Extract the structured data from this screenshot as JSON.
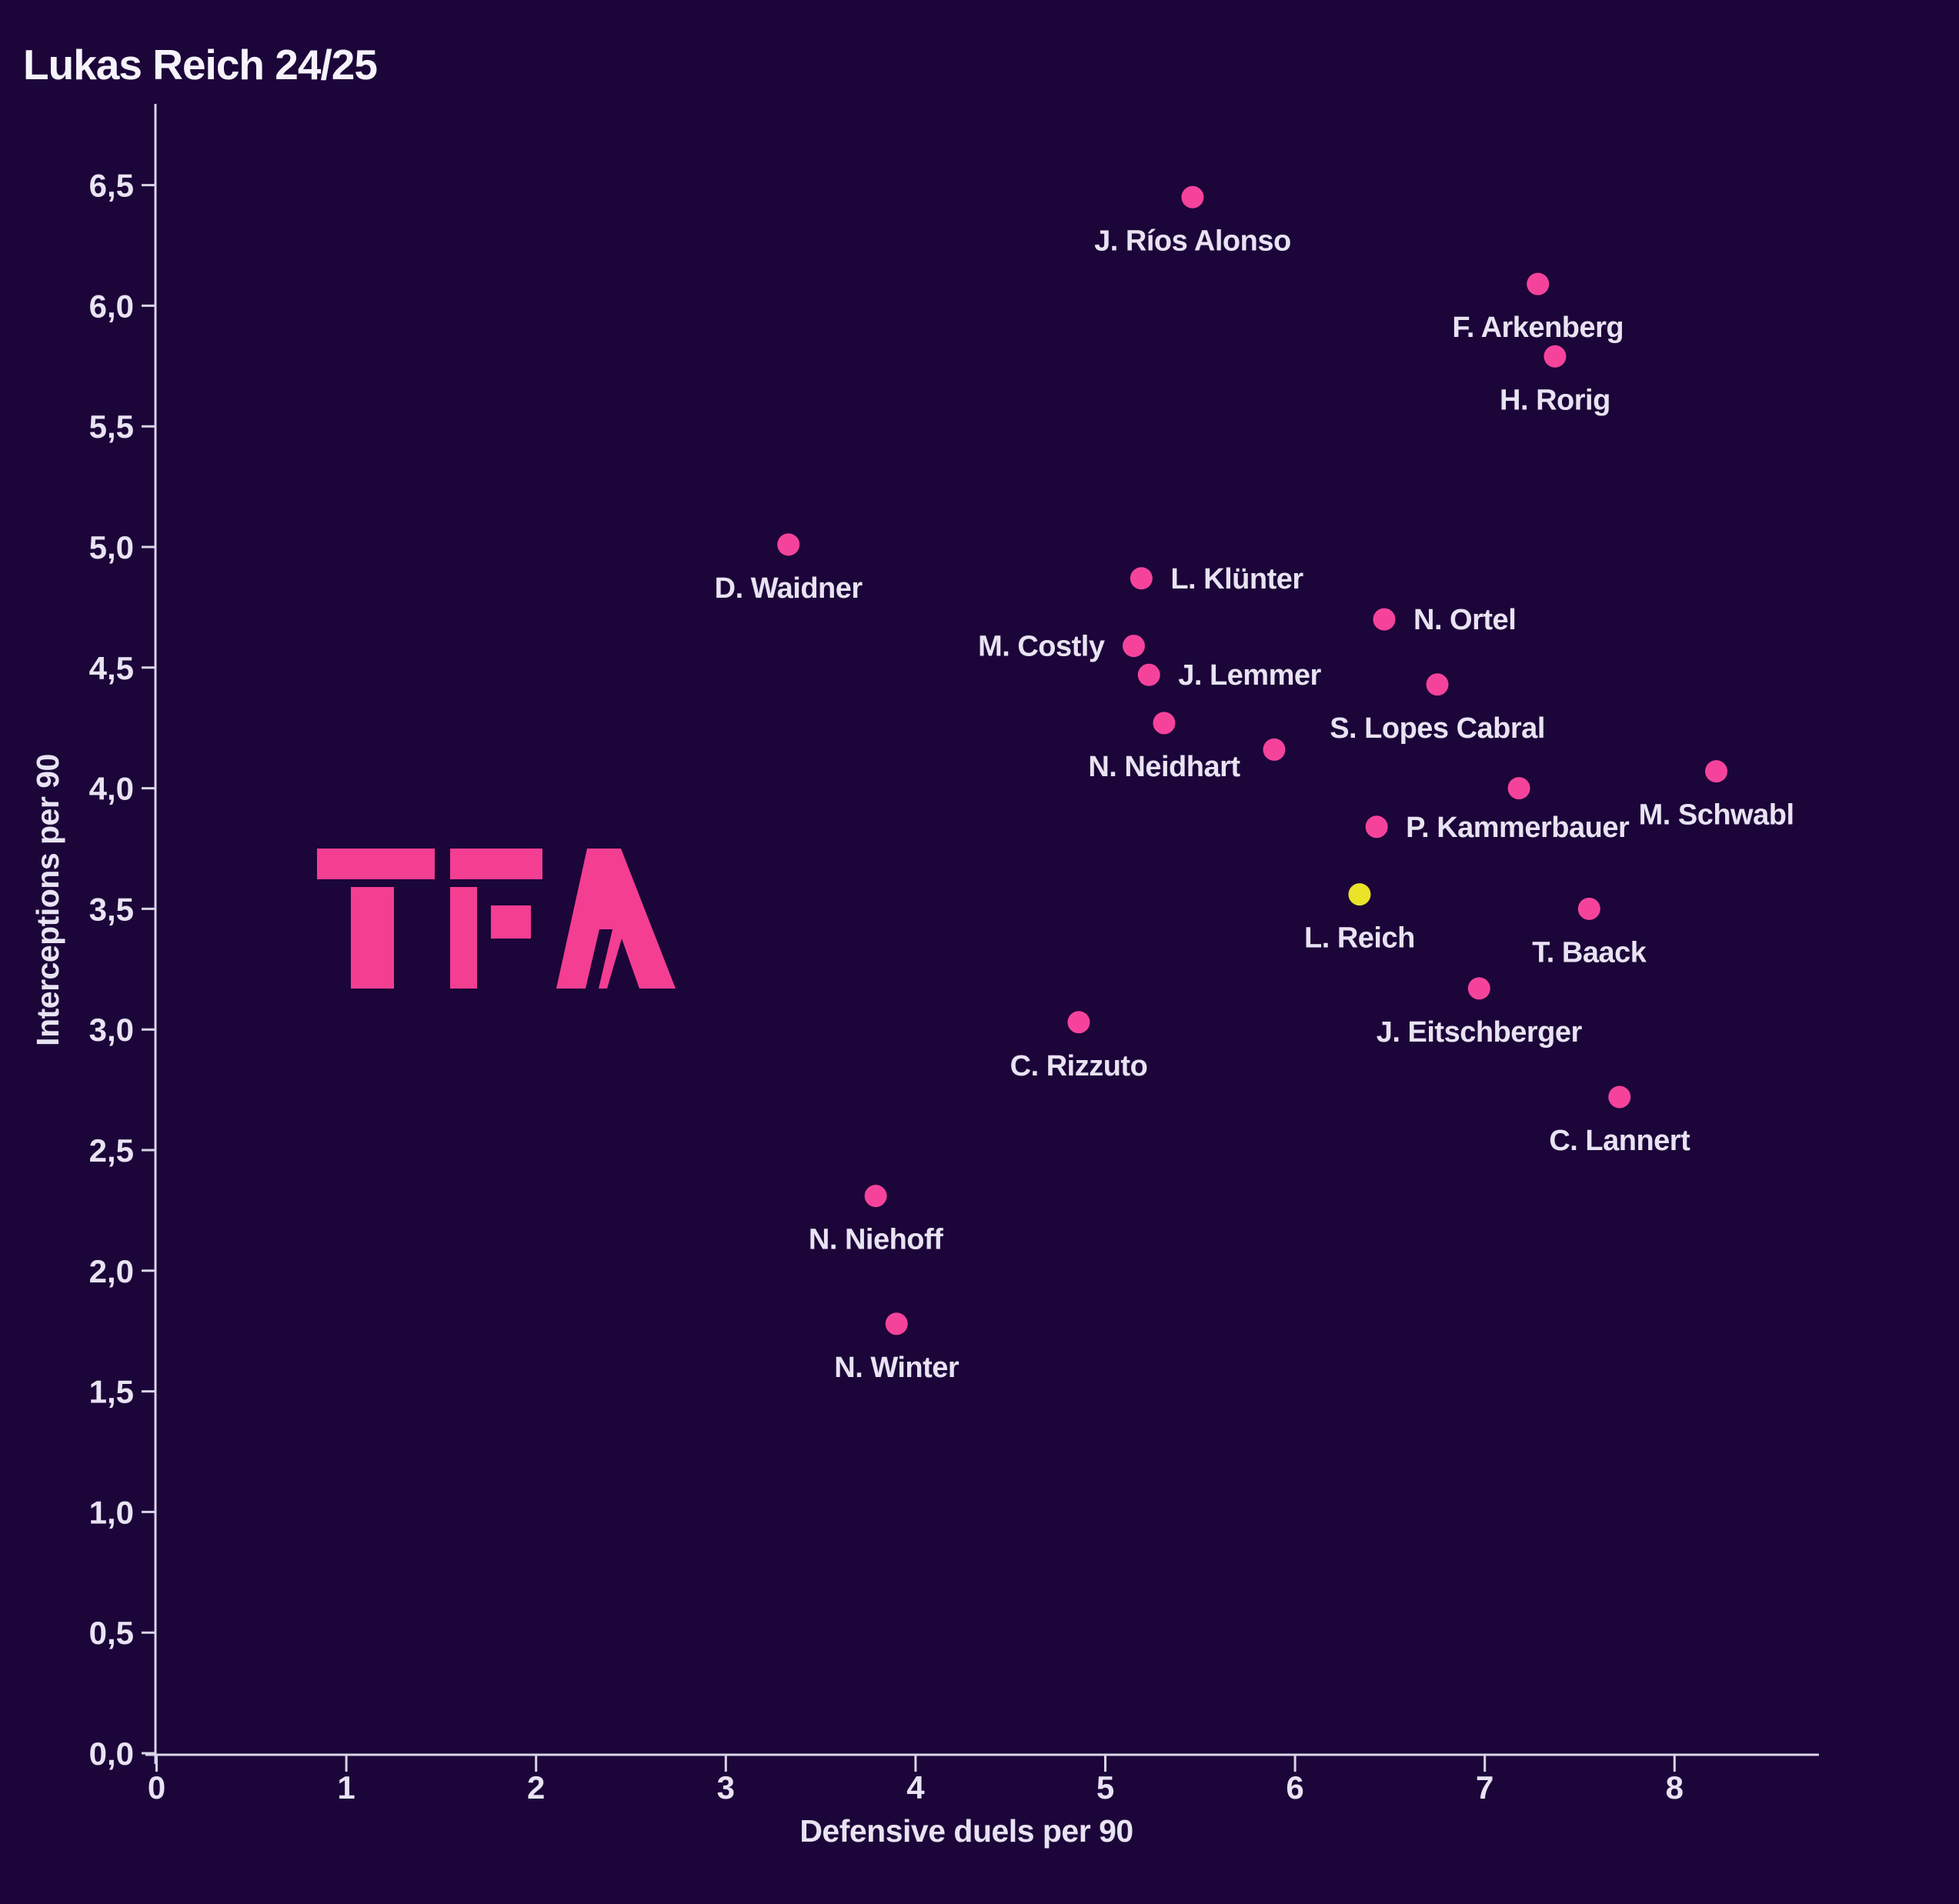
{
  "title": "Lukas Reich 24/25",
  "watermark": "TFA",
  "colors": {
    "background": "#1c0539",
    "point": "#f5439c",
    "highlight_point": "#ebe328",
    "label_text": "#e8e3f2",
    "axis": "#d9d5e6",
    "title_text": "#f6f3fb",
    "watermark_pink": "#f33e92"
  },
  "chart_data": {
    "type": "scatter",
    "title": "Lukas Reich 24/25",
    "xlabel": "Defensive duels per 90",
    "ylabel": "Interceptions per 90",
    "xlim": [
      0,
      8.8
    ],
    "ylim": [
      0,
      6.9
    ],
    "x_ticks": [
      "0",
      "1",
      "2",
      "3",
      "4",
      "5",
      "6",
      "7",
      "8"
    ],
    "y_ticks": [
      "0,0",
      "0,5",
      "1,0",
      "1,5",
      "2,0",
      "2,5",
      "3,0",
      "3,5",
      "4,0",
      "4,5",
      "5,0",
      "5,5",
      "6,0",
      "6,5"
    ],
    "y_tick_step": 0.5,
    "decimal_style": "comma",
    "grid": false,
    "legend": "none",
    "points": [
      {
        "name": "J. Ríos Alonso",
        "x": 5.46,
        "y": 6.45,
        "label": "below",
        "highlight": false
      },
      {
        "name": "F. Arkenberg",
        "x": 7.28,
        "y": 6.09,
        "label": "below",
        "highlight": false
      },
      {
        "name": "H. Rorig",
        "x": 7.37,
        "y": 5.79,
        "label": "below",
        "highlight": false
      },
      {
        "name": "D. Waidner",
        "x": 3.33,
        "y": 5.01,
        "label": "below",
        "highlight": false
      },
      {
        "name": "L. Klünter",
        "x": 5.19,
        "y": 4.87,
        "label": "right",
        "highlight": false
      },
      {
        "name": "N. Ortel",
        "x": 6.47,
        "y": 4.7,
        "label": "right",
        "highlight": false
      },
      {
        "name": "M. Costly",
        "x": 5.15,
        "y": 4.59,
        "label": "left",
        "highlight": false
      },
      {
        "name": "J. Lemmer",
        "x": 5.23,
        "y": 4.47,
        "label": "right",
        "highlight": false
      },
      {
        "name": "S. Lopes Cabral",
        "x": 6.75,
        "y": 4.43,
        "label": "below",
        "highlight": false
      },
      {
        "name": "N. Neidhart",
        "x": 5.31,
        "y": 4.27,
        "label": "below",
        "highlight": false
      },
      {
        "name": "",
        "x": 5.89,
        "y": 4.16,
        "label": "none",
        "highlight": false
      },
      {
        "name": "M. Schwabl",
        "x": 8.22,
        "y": 4.07,
        "label": "below",
        "highlight": false
      },
      {
        "name": "",
        "x": 7.18,
        "y": 4.0,
        "label": "none",
        "highlight": false
      },
      {
        "name": "P. Kammerbauer",
        "x": 6.43,
        "y": 3.84,
        "label": "right",
        "highlight": false
      },
      {
        "name": "L. Reich",
        "x": 6.34,
        "y": 3.56,
        "label": "below",
        "highlight": true
      },
      {
        "name": "T. Baack",
        "x": 7.55,
        "y": 3.5,
        "label": "below",
        "highlight": false
      },
      {
        "name": "J. Eitschberger",
        "x": 6.97,
        "y": 3.17,
        "label": "below",
        "highlight": false
      },
      {
        "name": "C. Rizzuto",
        "x": 4.86,
        "y": 3.03,
        "label": "below",
        "highlight": false
      },
      {
        "name": "C. Lannert",
        "x": 7.71,
        "y": 2.72,
        "label": "below",
        "highlight": false
      },
      {
        "name": "N. Niehoff",
        "x": 3.79,
        "y": 2.31,
        "label": "below",
        "highlight": false
      },
      {
        "name": "N. Winter",
        "x": 3.9,
        "y": 1.78,
        "label": "below",
        "highlight": false
      }
    ]
  }
}
